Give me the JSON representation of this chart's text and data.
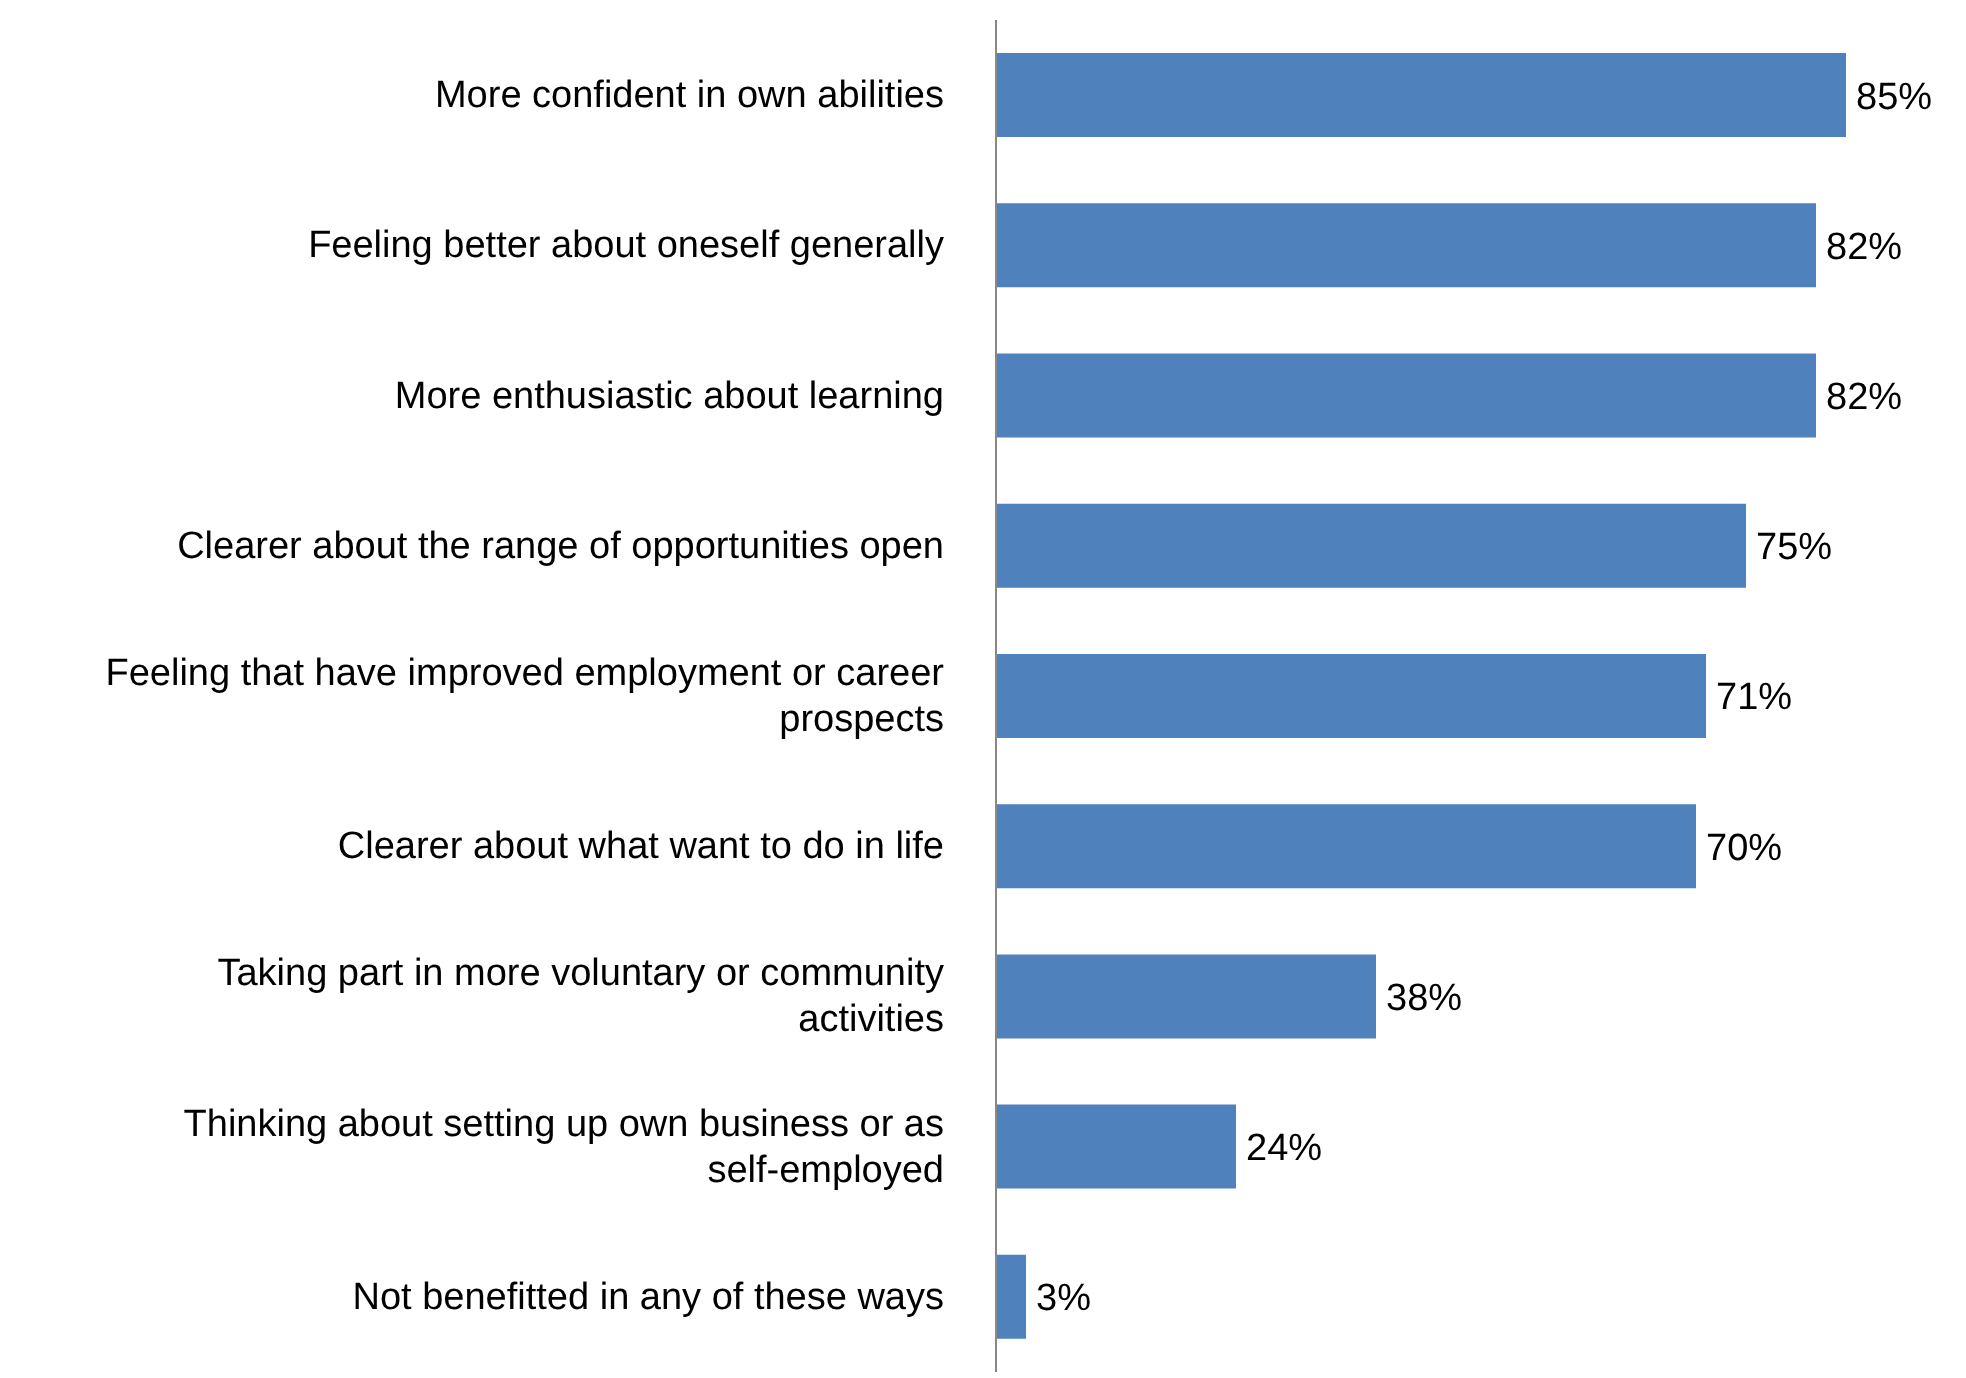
{
  "chart_data": {
    "type": "bar",
    "orientation": "horizontal",
    "categories": [
      "More confident in own abilities",
      "Feeling better about oneself generally",
      "More enthusiastic about learning",
      "Clearer about the range of opportunities open",
      "Feeling that have improved employment or career prospects",
      "Clearer about what want to do in life",
      "Taking part in more voluntary or community activities",
      "Thinking about setting up own business or as self-employed",
      "Not benefitted in any of these ways"
    ],
    "values": [
      85,
      82,
      82,
      75,
      71,
      70,
      38,
      24,
      3
    ],
    "color": "#4f81bd",
    "value_labels": [
      "85%",
      "82%",
      "82%",
      "75%",
      "71%",
      "70%",
      "38%",
      "24%",
      "3%"
    ],
    "grid": false,
    "legend": false
  }
}
